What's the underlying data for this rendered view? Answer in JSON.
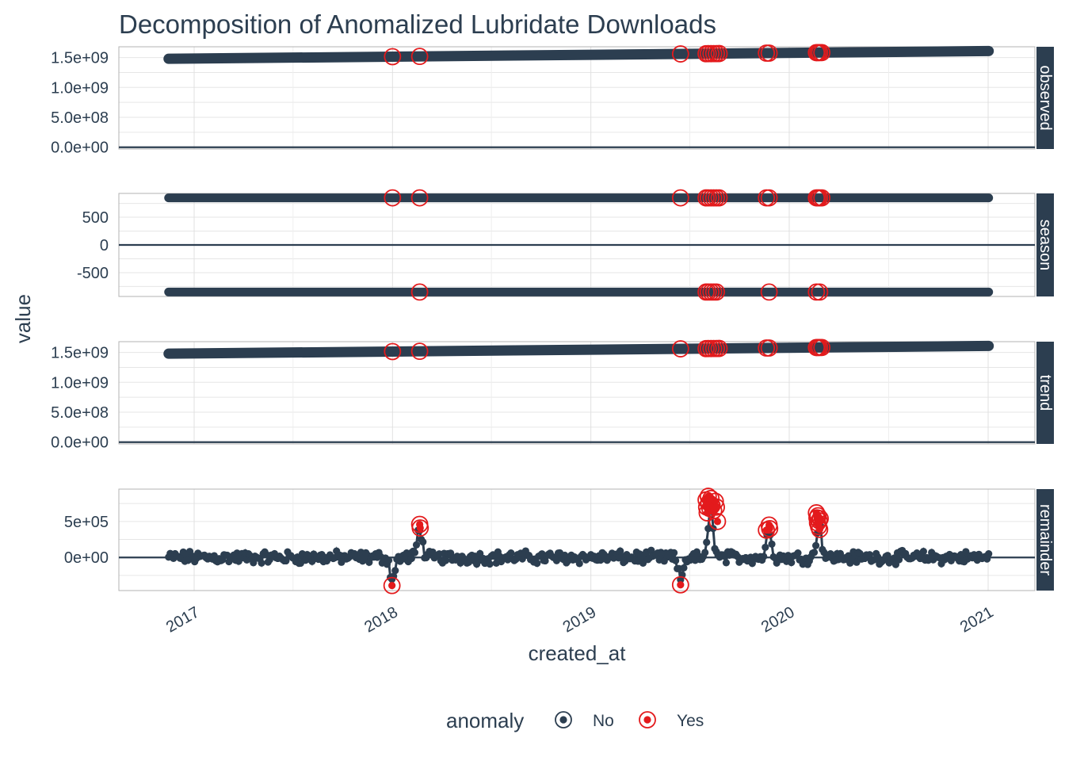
{
  "chart_data": {
    "type": "scatter",
    "title": "Decomposition of Anomalized Lubridate Downloads",
    "xlabel": "created_at",
    "ylabel": "value",
    "x_ticks": [
      "2017",
      "2018",
      "2019",
      "2020",
      "2021"
    ],
    "x_range": [
      "2016-11-01",
      "2021-01-01"
    ],
    "legend": {
      "title": "anomaly",
      "position": "bottom",
      "entries": [
        {
          "label": "No",
          "color": "#2c3e50"
        },
        {
          "label": "Yes",
          "color": "#e31a1c"
        }
      ]
    },
    "colors": {
      "normal": "#2c3e50",
      "anomaly": "#e31a1c",
      "strip": "#2c3e50",
      "grid": "#d9d9d9"
    },
    "panels": [
      {
        "name": "observed",
        "y_range": [
          -30000000,
          1680000000
        ],
        "y_ticks": [
          {
            "value": 0,
            "label": "0.0e+00"
          },
          {
            "value": 500000000,
            "label": "5.0e+08"
          },
          {
            "value": 1000000000,
            "label": "1.0e+09"
          },
          {
            "value": 1500000000,
            "label": "1.5e+09"
          }
        ],
        "series_start": {
          "date": "2016-11-15",
          "value": 1479000000
        },
        "series_end": {
          "date": "2021-01-02",
          "value": 1609000000
        },
        "anomalies": [
          "2018-01-01",
          "2018-02-20",
          "2019-06-15",
          "2019-08-01",
          "2019-08-05",
          "2019-08-10",
          "2019-08-15",
          "2019-08-20",
          "2019-08-25",
          "2019-11-20",
          "2019-11-25",
          "2020-02-20",
          "2020-02-23",
          "2020-02-26",
          "2020-03-01"
        ]
      },
      {
        "name": "season",
        "y_range": [
          -930,
          930
        ],
        "y_ticks": [
          {
            "value": -500,
            "label": "-500"
          },
          {
            "value": 0,
            "label": "0"
          },
          {
            "value": 500,
            "label": "500"
          }
        ],
        "high_value": 850,
        "low_value": -850,
        "anomalies_high": [
          "2018-01-01",
          "2018-02-20",
          "2019-06-15",
          "2019-08-01",
          "2019-08-05",
          "2019-08-10",
          "2019-08-15",
          "2019-08-20",
          "2019-08-25",
          "2019-11-20",
          "2019-11-25",
          "2020-02-20",
          "2020-02-23",
          "2020-02-26",
          "2020-03-01"
        ],
        "anomalies_low": [
          "2018-02-20",
          "2019-08-01",
          "2019-08-05",
          "2019-08-10",
          "2019-08-15",
          "2019-08-20",
          "2019-11-25",
          "2020-02-20",
          "2020-02-26"
        ]
      },
      {
        "name": "trend",
        "y_range": [
          -30000000,
          1680000000
        ],
        "y_ticks": [
          {
            "value": 0,
            "label": "0.0e+00"
          },
          {
            "value": 500000000,
            "label": "5.0e+08"
          },
          {
            "value": 1000000000,
            "label": "1.0e+09"
          },
          {
            "value": 1500000000,
            "label": "1.5e+09"
          }
        ],
        "series_start": {
          "date": "2016-11-15",
          "value": 1479000000
        },
        "series_end": {
          "date": "2021-01-02",
          "value": 1609000000
        },
        "anomalies": [
          "2018-01-01",
          "2018-02-20",
          "2019-06-15",
          "2019-08-01",
          "2019-08-05",
          "2019-08-10",
          "2019-08-15",
          "2019-08-20",
          "2019-08-25",
          "2019-11-20",
          "2019-11-25",
          "2020-02-20",
          "2020-02-23",
          "2020-02-26",
          "2020-03-01"
        ]
      },
      {
        "name": "remainder",
        "y_range": [
          -460000,
          950000
        ],
        "y_ticks": [
          {
            "value": 0,
            "label": "0e+00"
          },
          {
            "value": 500000,
            "label": "5e+05"
          }
        ],
        "noise_amplitude": 130000,
        "spikes": [
          {
            "date": "2018-01-01",
            "value": -300000
          },
          {
            "date": "2018-02-20",
            "value": 420000
          },
          {
            "date": "2019-06-15",
            "value": -300000
          },
          {
            "date": "2019-08-10",
            "value": 700000
          },
          {
            "date": "2019-11-25",
            "value": 400000
          },
          {
            "date": "2020-02-25",
            "value": 500000
          }
        ],
        "anomalies": [
          {
            "date": "2017-12-31",
            "value": -390000
          },
          {
            "date": "2018-02-20",
            "value": 460000
          },
          {
            "date": "2018-02-21",
            "value": 410000
          },
          {
            "date": "2019-06-15",
            "value": -380000
          },
          {
            "date": "2019-08-01",
            "value": 800000
          },
          {
            "date": "2019-08-02",
            "value": 700000
          },
          {
            "date": "2019-08-03",
            "value": 620000
          },
          {
            "date": "2019-08-05",
            "value": 850000
          },
          {
            "date": "2019-08-06",
            "value": 760000
          },
          {
            "date": "2019-08-08",
            "value": 680000
          },
          {
            "date": "2019-08-10",
            "value": 820000
          },
          {
            "date": "2019-08-12",
            "value": 720000
          },
          {
            "date": "2019-08-15",
            "value": 650000
          },
          {
            "date": "2019-08-18",
            "value": 780000
          },
          {
            "date": "2019-08-20",
            "value": 700000
          },
          {
            "date": "2019-08-22",
            "value": 500000
          },
          {
            "date": "2019-11-20",
            "value": 380000
          },
          {
            "date": "2019-11-25",
            "value": 450000
          },
          {
            "date": "2019-11-26",
            "value": 400000
          },
          {
            "date": "2020-02-20",
            "value": 620000
          },
          {
            "date": "2020-02-21",
            "value": 550000
          },
          {
            "date": "2020-02-22",
            "value": 480000
          },
          {
            "date": "2020-02-23",
            "value": 580000
          },
          {
            "date": "2020-02-24",
            "value": 430000
          },
          {
            "date": "2020-02-25",
            "value": 510000
          },
          {
            "date": "2020-02-26",
            "value": 390000
          },
          {
            "date": "2020-02-27",
            "value": 540000
          }
        ]
      }
    ]
  }
}
